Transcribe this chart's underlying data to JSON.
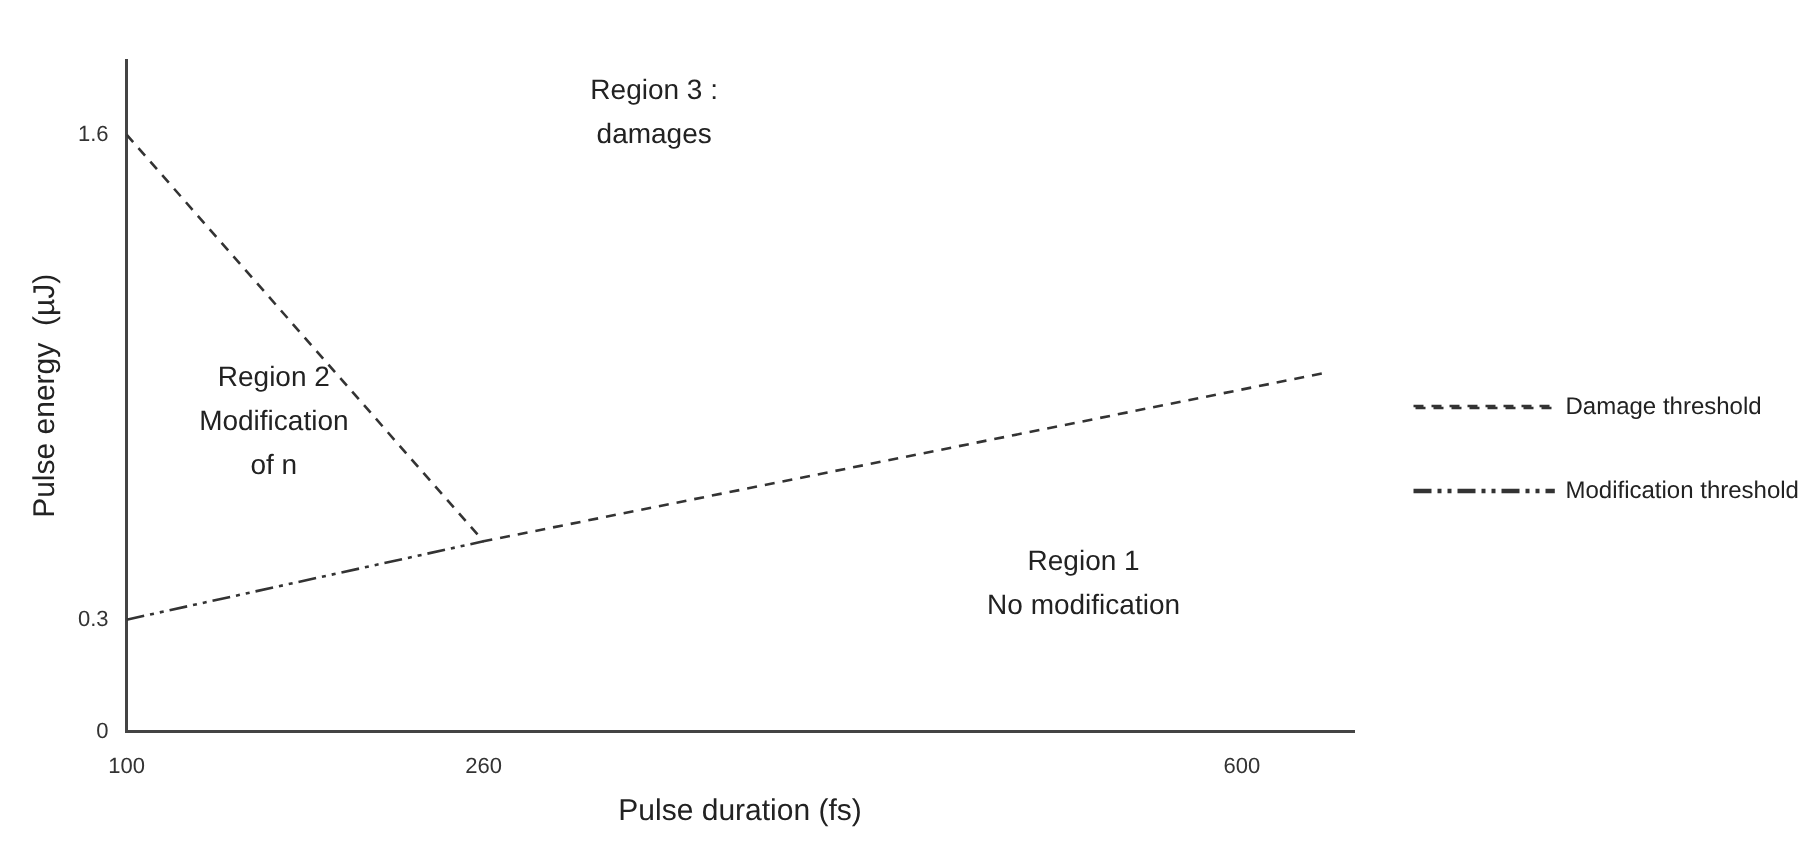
{
  "chart_data": {
    "type": "line",
    "xlabel": "Pulse duration (fs)",
    "ylabel": "Pulse energy  (µJ)",
    "xlim": [
      100,
      650
    ],
    "ylim": [
      0,
      1.8
    ],
    "xticks": [
      100,
      260,
      600
    ],
    "yticks": [
      0,
      0.3,
      1.6
    ],
    "grid": false,
    "legend": "right",
    "marker": "none",
    "series": [
      {
        "name": "Damage threshold",
        "color": "#333333",
        "line_style": "dashed",
        "x": [
          100,
          260,
          636
        ],
        "values": [
          1.6,
          0.51,
          0.96
        ]
      },
      {
        "name": "Modification threshold",
        "color": "#333333",
        "line_style": "dashdot",
        "x": [
          100,
          260
        ],
        "values": [
          0.3,
          0.51
        ]
      }
    ],
    "annotations": [
      "Region 3 :\ndamages",
      "Region 2\nModification\nof n",
      "Region 1\nNo modification"
    ]
  }
}
